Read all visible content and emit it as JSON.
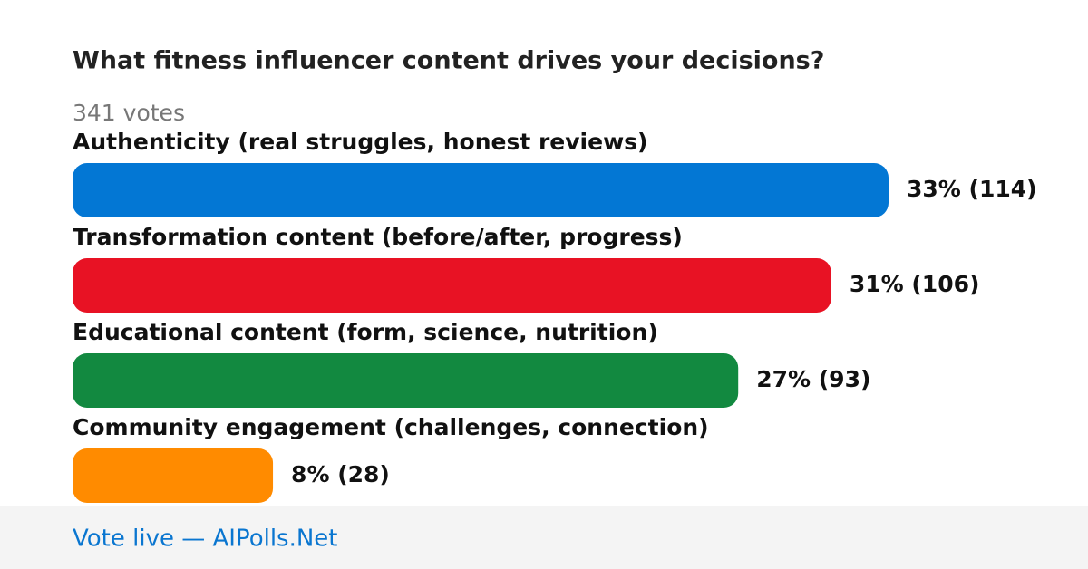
{
  "chart_data": {
    "type": "bar",
    "orientation": "horizontal",
    "title": "What fitness influencer content drives your decisions?",
    "subtitle": "341 votes",
    "categories": [
      "Authenticity (real struggles, honest reviews)",
      "Transformation content (before/after, progress)",
      "Educational content (form, science, nutrition)",
      "Community engagement (challenges, connection)"
    ],
    "values": [
      114,
      106,
      93,
      28
    ],
    "value_labels": [
      "33% (114)",
      "31% (106)",
      "27% (93)",
      "8% (28)"
    ],
    "colors": [
      "#0377d4",
      "#e81224",
      "#128940",
      "#ff8b00"
    ]
  },
  "footer": {
    "text": "Vote live — AIPolls.Net"
  }
}
